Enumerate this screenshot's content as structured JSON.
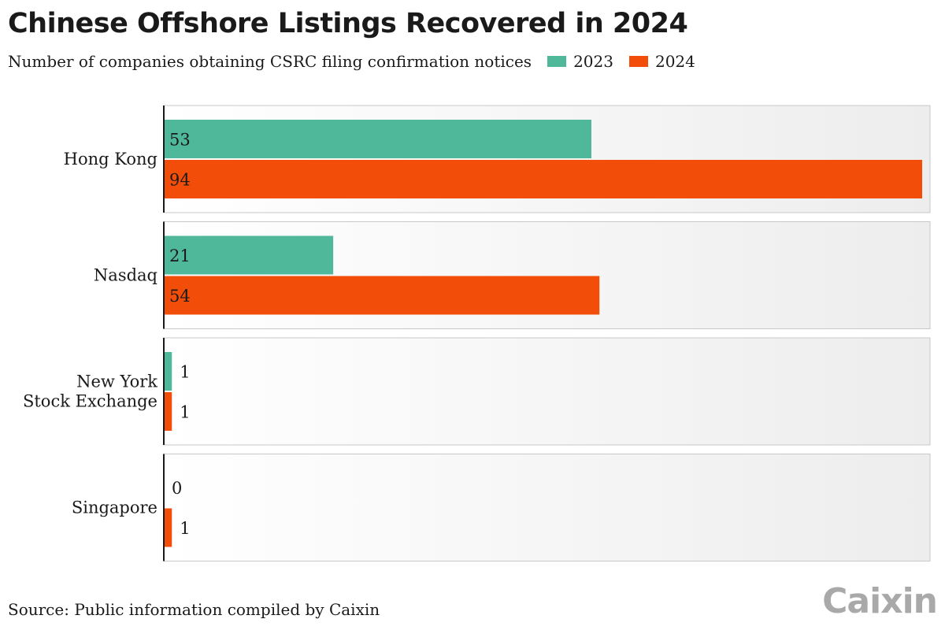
{
  "chart_data": {
    "type": "bar",
    "orientation": "horizontal",
    "title": "Chinese Offshore Listings Recovered in 2024",
    "subtitle": "Number of companies obtaining CSRC filing confirmation notices",
    "categories": [
      "Hong Kong",
      "Nasdaq",
      "New York Stock Exchange",
      "Singapore"
    ],
    "category_lines": [
      [
        "Hong Kong"
      ],
      [
        "Nasdaq"
      ],
      [
        "New York",
        "Stock Exchange"
      ],
      [
        "Singapore"
      ]
    ],
    "series": [
      {
        "name": "2023",
        "values": [
          53,
          21,
          1,
          0
        ],
        "color": "#4fb79a"
      },
      {
        "name": "2024",
        "values": [
          94,
          54,
          1,
          1
        ],
        "color": "#f24e0a"
      }
    ],
    "xlim": [
      0,
      94
    ],
    "grid": false,
    "legend": "top-right of subtitle",
    "source": "Source: Public information compiled by Caixin"
  },
  "brand": {
    "logo_text": "Caixin"
  }
}
